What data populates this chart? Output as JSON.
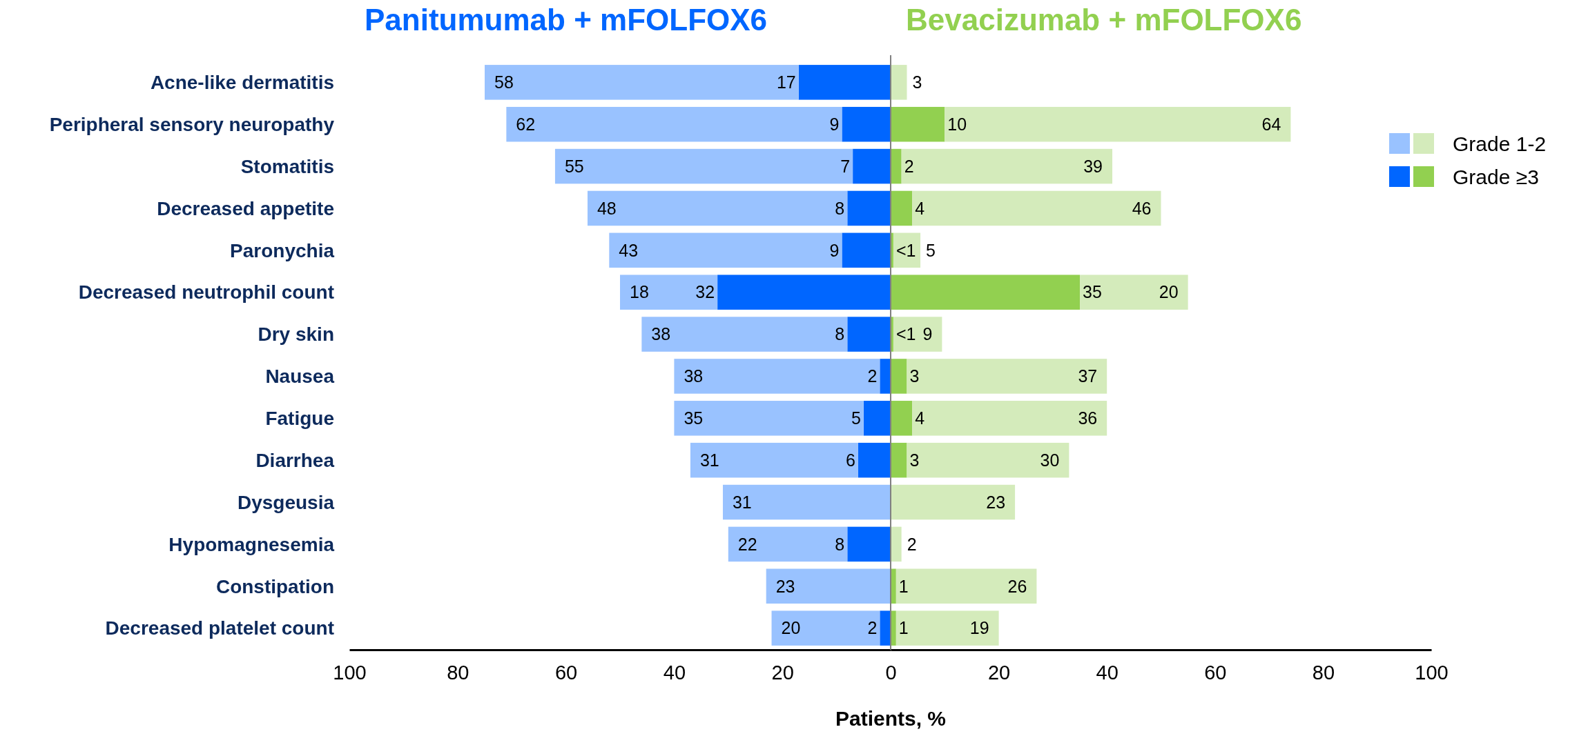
{
  "chart_data": [
    {
      "type": "bar",
      "orientation": "horizontal",
      "stacked": true,
      "title": "Panitumumab + mFOLFOX6",
      "xlabel": "Patients, %",
      "categories": [
        "Acne-like dermatitis",
        "Peripheral sensory neuropathy",
        "Stomatitis",
        "Decreased appetite",
        "Paronychia",
        "Decreased neutrophil count",
        "Dry skin",
        "Nausea",
        "Fatigue",
        "Diarrhea",
        "Dysgeusia",
        "Hypomagnesemia",
        "Constipation",
        "Decreased platelet count"
      ],
      "series": [
        {
          "color": "#0066ff",
          "values": [
            17,
            9,
            7,
            8,
            9,
            32,
            8,
            2,
            5,
            6,
            null,
            8,
            null,
            2
          ]
        },
        {
          "color": "#99c2ff",
          "values": [
            58,
            62,
            55,
            48,
            43,
            18,
            38,
            38,
            35,
            31,
            31,
            22,
            23,
            20
          ]
        }
      ],
      "data_labels": true,
      "xlim": [
        100,
        0
      ],
      "xticks": [
        100,
        80,
        60,
        40,
        20,
        0
      ]
    },
    {
      "type": "bar",
      "orientation": "horizontal",
      "stacked": true,
      "title": "Bevacizumab + mFOLFOX6",
      "categories": [
        null,
        null,
        null,
        null,
        null,
        null,
        null,
        null,
        null,
        null,
        null,
        null,
        null,
        null
      ],
      "tick_labels": "x",
      "series": [
        {
          "name": "Grade ≥3",
          "color": "#92d050",
          "values": [
            null,
            10,
            2,
            4,
            0.5,
            35,
            0.5,
            3,
            4,
            3,
            null,
            null,
            1,
            1
          ],
          "value_labels": [
            null,
            "10",
            "2",
            "4",
            "<1",
            "35",
            "<1",
            "3",
            "4",
            "3",
            null,
            null,
            "1",
            "1"
          ]
        },
        {
          "name": "Grade 1-2",
          "color": "#d4ebbb",
          "values": [
            3,
            64,
            39,
            46,
            5,
            20,
            9,
            37,
            36,
            30,
            23,
            2,
            26,
            19
          ],
          "value_labels": [
            "3",
            "64",
            "39",
            "46",
            "5",
            "20",
            "9",
            "37",
            "36",
            "30",
            "23",
            "2",
            "26",
            "19"
          ]
        }
      ],
      "xlim": [
        0,
        100
      ],
      "xticks": [
        20,
        40,
        60,
        80,
        100
      ],
      "legend": "top right"
    }
  ]
}
